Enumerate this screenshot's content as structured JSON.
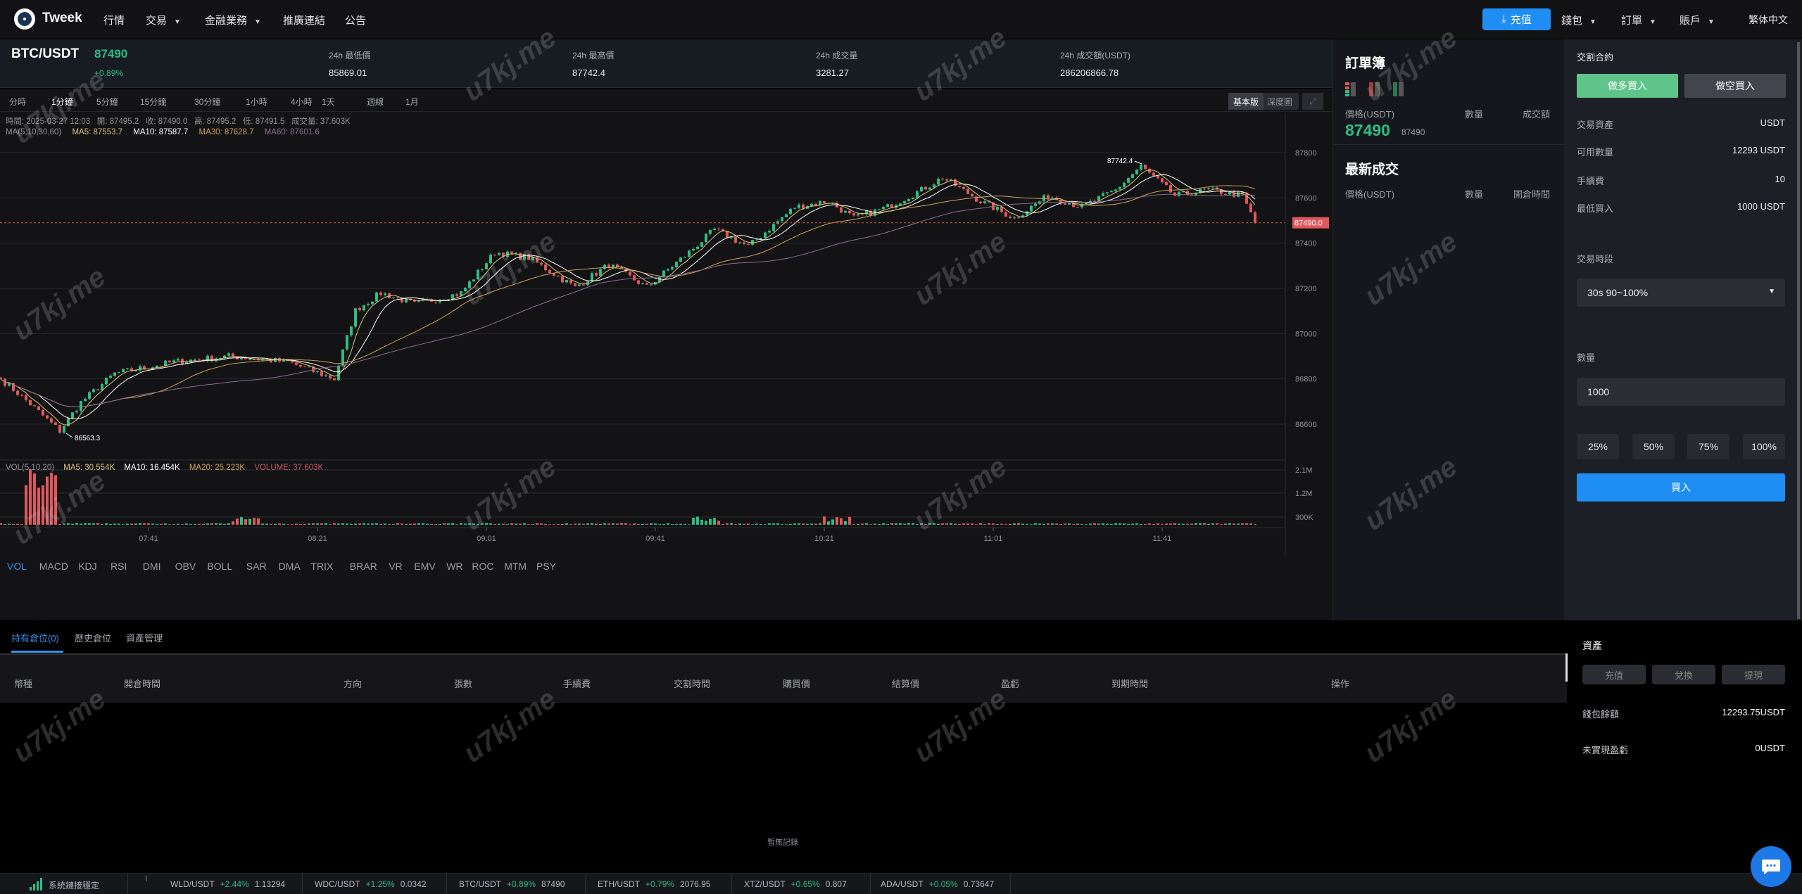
{
  "nav": {
    "brand": "Tweek",
    "items": [
      "行情",
      "交易",
      "金融業務",
      "推廣連結",
      "公告"
    ],
    "deposit": "充值",
    "wallet": "錢包",
    "orders": "訂單",
    "account": "賬戶",
    "language": "繁体中文"
  },
  "ticker": {
    "pair": "BTC/USDT",
    "price": "87490",
    "change": "+0.89%",
    "low_label": "24h 最低價",
    "low": "85869.01",
    "high_label": "24h 最高價",
    "high": "87742.4",
    "vol_label": "24h 成交量",
    "vol": "3281.27",
    "turnover_label": "24h 成交額(USDT)",
    "turnover": "286206866.78"
  },
  "periods": [
    "分時",
    "1分鐘",
    "5分鐘",
    "15分鐘",
    "30分鐘",
    "1小時",
    "4小時",
    "1天",
    "週線",
    "1月"
  ],
  "chart_modes": {
    "basic": "基本版",
    "depth": "深度圖"
  },
  "info_line": "時間: 2025-03-27 12:03   開: 87495.2   收: 87490.0   高: 87495.2   低: 87491.5   成交量: 37.603K",
  "ma_legend": {
    "label": "MA(5,10,30,60)",
    "ma5": "MA5: 87553.7",
    "ma10": "MA10: 87587.7",
    "ma30": "MA30: 87628.7",
    "ma60": "MA60: 87601.6"
  },
  "vol_legend": {
    "label": "VOL(5,10,20)",
    "ma5": "MA5: 30.554K",
    "ma10": "MA10: 16.454K",
    "ma20": "MA20: 25.223K",
    "volume": "VOLUME: 37.603K"
  },
  "indicators": [
    "VOL",
    "MACD",
    "KDJ",
    "RSI",
    "DMI",
    "OBV",
    "BOLL",
    "SAR",
    "DMA",
    "TRIX",
    "BRAR",
    "VR",
    "EMV",
    "WR",
    "ROC",
    "MTM",
    "PSY"
  ],
  "colors": {
    "up": "#2ebd85",
    "down": "#e0575b",
    "accent": "#1e8ef5",
    "ma5": "#d8c27a",
    "ma10": "#ffffff",
    "ma30": "#c9a25b",
    "ma60": "#8a6d8f"
  },
  "chart_data": {
    "type": "candlestick",
    "interval": "1m",
    "y_ticks": [
      87800,
      87600,
      87400,
      87200,
      87000,
      86800,
      86600
    ],
    "ylim": [
      86520,
      87900
    ],
    "x_ticks": [
      "07:41",
      "08:21",
      "09:01",
      "09:41",
      "10:21",
      "11:01",
      "11:41"
    ],
    "vol_ticks": [
      "2.1M",
      "1.2M",
      "300K"
    ],
    "last_price_label": "87490.0",
    "last_price": 87490,
    "max_label": "87742.4",
    "min_label": "86563.3",
    "close_path": [
      {
        "time": "07:06",
        "close": 86800
      },
      {
        "time": "07:11",
        "close": 86722
      },
      {
        "time": "07:20",
        "close": 86570
      },
      {
        "time": "07:25",
        "close": 86697
      },
      {
        "time": "07:33",
        "close": 86824
      },
      {
        "time": "07:47",
        "close": 86875
      },
      {
        "time": "08:00",
        "close": 86900
      },
      {
        "time": "08:14",
        "close": 86875
      },
      {
        "time": "08:25",
        "close": 86800
      },
      {
        "time": "08:30",
        "close": 87103
      },
      {
        "time": "08:36",
        "close": 87180
      },
      {
        "time": "08:44",
        "close": 87130
      },
      {
        "time": "08:55",
        "close": 87180
      },
      {
        "time": "09:03",
        "close": 87360
      },
      {
        "time": "09:11",
        "close": 87335
      },
      {
        "time": "09:22",
        "close": 87205
      },
      {
        "time": "09:30",
        "close": 87305
      },
      {
        "time": "09:39",
        "close": 87205
      },
      {
        "time": "09:49",
        "close": 87360
      },
      {
        "time": "09:55",
        "close": 87460
      },
      {
        "time": "10:03",
        "close": 87385
      },
      {
        "time": "10:14",
        "close": 87560
      },
      {
        "time": "10:22",
        "close": 87585
      },
      {
        "time": "10:28",
        "close": 87510
      },
      {
        "time": "10:36",
        "close": 87560
      },
      {
        "time": "10:44",
        "close": 87635
      },
      {
        "time": "10:49",
        "close": 87690
      },
      {
        "time": "10:58",
        "close": 87585
      },
      {
        "time": "11:06",
        "close": 87510
      },
      {
        "time": "11:14",
        "close": 87610
      },
      {
        "time": "11:22",
        "close": 87560
      },
      {
        "time": "11:30",
        "close": 87635
      },
      {
        "time": "11:36",
        "close": 87740
      },
      {
        "time": "11:44",
        "close": 87610
      },
      {
        "time": "11:52",
        "close": 87635
      },
      {
        "time": "12:00",
        "close": 87610
      },
      {
        "time": "12:03",
        "close": 87490
      }
    ],
    "volume_spikes": [
      {
        "time": "07:15",
        "volume": "2.1M"
      },
      {
        "time": "08:04",
        "volume": "300K"
      },
      {
        "time": "09:53",
        "volume": "300K"
      },
      {
        "time": "10:24",
        "volume": "300K"
      }
    ]
  },
  "orderbook": {
    "title": "訂單簿",
    "price_header": "價格(USDT)",
    "qty_header": "數量",
    "amount_header": "成交額",
    "price": "87490",
    "sub_price": "87490",
    "latest_title": "最新成交",
    "latest_price_header": "價格(USDT)",
    "latest_qty_header": "數量",
    "latest_time_header": "開倉時間"
  },
  "trade": {
    "title": "交割合約",
    "long": "做多買入",
    "short": "做空買入",
    "rows": [
      {
        "label": "交易資產",
        "value": "USDT"
      },
      {
        "label": "可用數量",
        "value": "12293 USDT"
      },
      {
        "label": "手續費",
        "value": "10"
      },
      {
        "label": "最低買入",
        "value": "1000 USDT"
      }
    ],
    "period_label": "交易時段",
    "period_value": "30s 90~100%",
    "qty_label": "數量",
    "qty_value": "1000",
    "pcts": [
      "25%",
      "50%",
      "75%",
      "100%"
    ],
    "buy": "買入"
  },
  "positions": {
    "tabs": [
      "持有倉位(0)",
      "歷史倉位",
      "資產管理"
    ],
    "columns": [
      "幣種",
      "開倉時間",
      "方向",
      "張數",
      "手續費",
      "交割時間",
      "購買價",
      "結算價",
      "盈虧",
      "到期時間",
      "操作"
    ],
    "empty": "暫無記錄"
  },
  "assets": {
    "title": "資產",
    "deposit": "充值",
    "exchange": "兌換",
    "withdraw": "提現",
    "wallet_label": "錢包餘額",
    "wallet": "12293.75USDT",
    "pnl_label": "未實現盈虧",
    "pnl": "0USDT"
  },
  "footer": {
    "status": "系統鏈接穩定",
    "tickers": [
      {
        "pair": "WLD/USDT",
        "change": "+2.44%",
        "price": "1.13294"
      },
      {
        "pair": "WDC/USDT",
        "change": "+1.25%",
        "price": "0.0342"
      },
      {
        "pair": "BTC/USDT",
        "change": "+0.89%",
        "price": "87490"
      },
      {
        "pair": "ETH/USDT",
        "change": "+0.79%",
        "price": "2076.95"
      },
      {
        "pair": "XTZ/USDT",
        "change": "+0.65%",
        "price": "0.807"
      },
      {
        "pair": "ADA/USDT",
        "change": "+0.05%",
        "price": "0.73647"
      }
    ]
  },
  "watermark": "u7kj.me"
}
